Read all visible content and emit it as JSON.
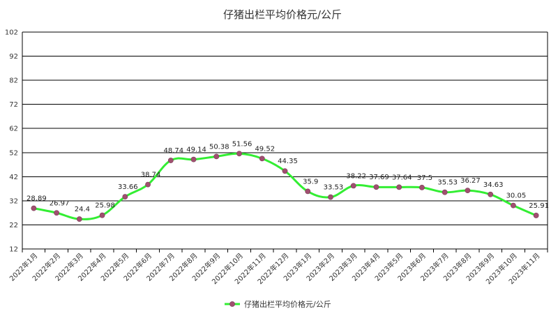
{
  "chart_data": {
    "type": "line",
    "title": "仔猪出栏平均价格元/公斤",
    "xlabel": "",
    "ylabel": "",
    "ylim": [
      12,
      102
    ],
    "yticks": [
      12,
      22,
      32,
      42,
      52,
      62,
      72,
      82,
      92,
      102
    ],
    "grid": "horizontal",
    "legend_position": "bottom",
    "categories": [
      "2022年1月",
      "2022年2月",
      "2022年3月",
      "2022年4月",
      "2022年5月",
      "2022年6月",
      "2022年7月",
      "2022年8月",
      "2022年9月",
      "2022年10月",
      "2022年11月",
      "2022年12月",
      "2023年1月",
      "2023年2月",
      "2023年3月",
      "2023年4月",
      "2023年5月",
      "2023年6月",
      "2023年7月",
      "2023年8月",
      "2023年9月",
      "2023年10月",
      "2023年11月"
    ],
    "series": [
      {
        "name": "仔猪出栏平均价格元/公斤",
        "values": [
          28.89,
          26.97,
          24.4,
          25.98,
          33.66,
          38.74,
          48.74,
          49.14,
          50.38,
          51.56,
          49.52,
          44.35,
          35.9,
          33.53,
          38.22,
          37.69,
          37.64,
          37.5,
          35.53,
          36.27,
          34.63,
          30.05,
          25.91
        ],
        "labels": [
          "28.89",
          "26.97",
          "24.4",
          "25.98",
          "33.66",
          "38.74",
          "48.74",
          "49.14",
          "50.38",
          "51.56",
          "49.52",
          "44.35",
          "35.9",
          "33.53",
          "38.22",
          "37.69",
          "37.64",
          "37.5",
          "35.53",
          "36.27",
          "34.63",
          "30.05",
          "25.91"
        ],
        "line_color": "#33ee33",
        "marker_color": "#a05070"
      }
    ]
  }
}
